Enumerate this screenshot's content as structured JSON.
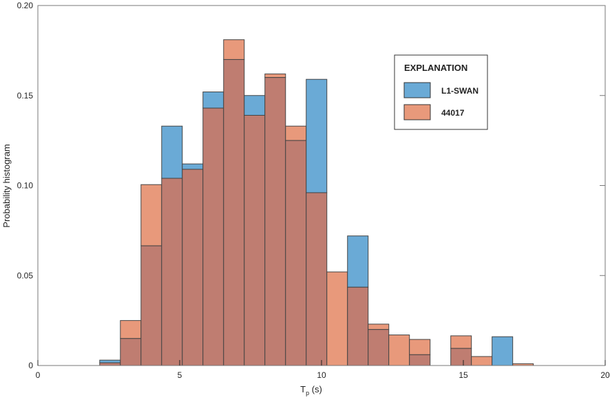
{
  "chart_data": {
    "type": "bar",
    "subtype": "overlapping-histogram",
    "xlabel_main": "T",
    "xlabel_sub": "p",
    "xlabel_unit": " (s)",
    "ylabel": "Probability histogram",
    "xlim": [
      0,
      20
    ],
    "ylim": [
      0,
      0.2
    ],
    "xticks": [
      0,
      5,
      10,
      15,
      20
    ],
    "xtick_labels": [
      "0",
      "5",
      "10",
      "15",
      "20"
    ],
    "yticks": [
      0,
      0.05,
      0.1,
      0.15,
      0.2
    ],
    "ytick_labels": [
      "0",
      "0.05",
      "0.10",
      "0.15",
      "0.20"
    ],
    "grid": false,
    "bin_start": 2.18,
    "bin_width": 0.728,
    "legend": {
      "title": "EXPLANATION",
      "placement": "top-right"
    },
    "series": [
      {
        "name": "L1-SWAN",
        "color": "#6aaad6",
        "values": [
          0.003,
          0.015,
          0.0665,
          0.133,
          0.112,
          0.152,
          0.17,
          0.15,
          0.16,
          0.125,
          0.159,
          0,
          0.072,
          0.02,
          0,
          0.006,
          0,
          0.0095,
          0,
          0.016,
          0
        ]
      },
      {
        "name": "44017",
        "color": "#e8997b",
        "values": [
          0.0015,
          0.025,
          0.1005,
          0.104,
          0.109,
          0.143,
          0.181,
          0.139,
          0.162,
          0.133,
          0.096,
          0.052,
          0.0435,
          0.023,
          0.017,
          0.0145,
          0,
          0.0165,
          0.005,
          0,
          0.001
        ]
      }
    ],
    "overlap_color": "#bf7d71"
  }
}
